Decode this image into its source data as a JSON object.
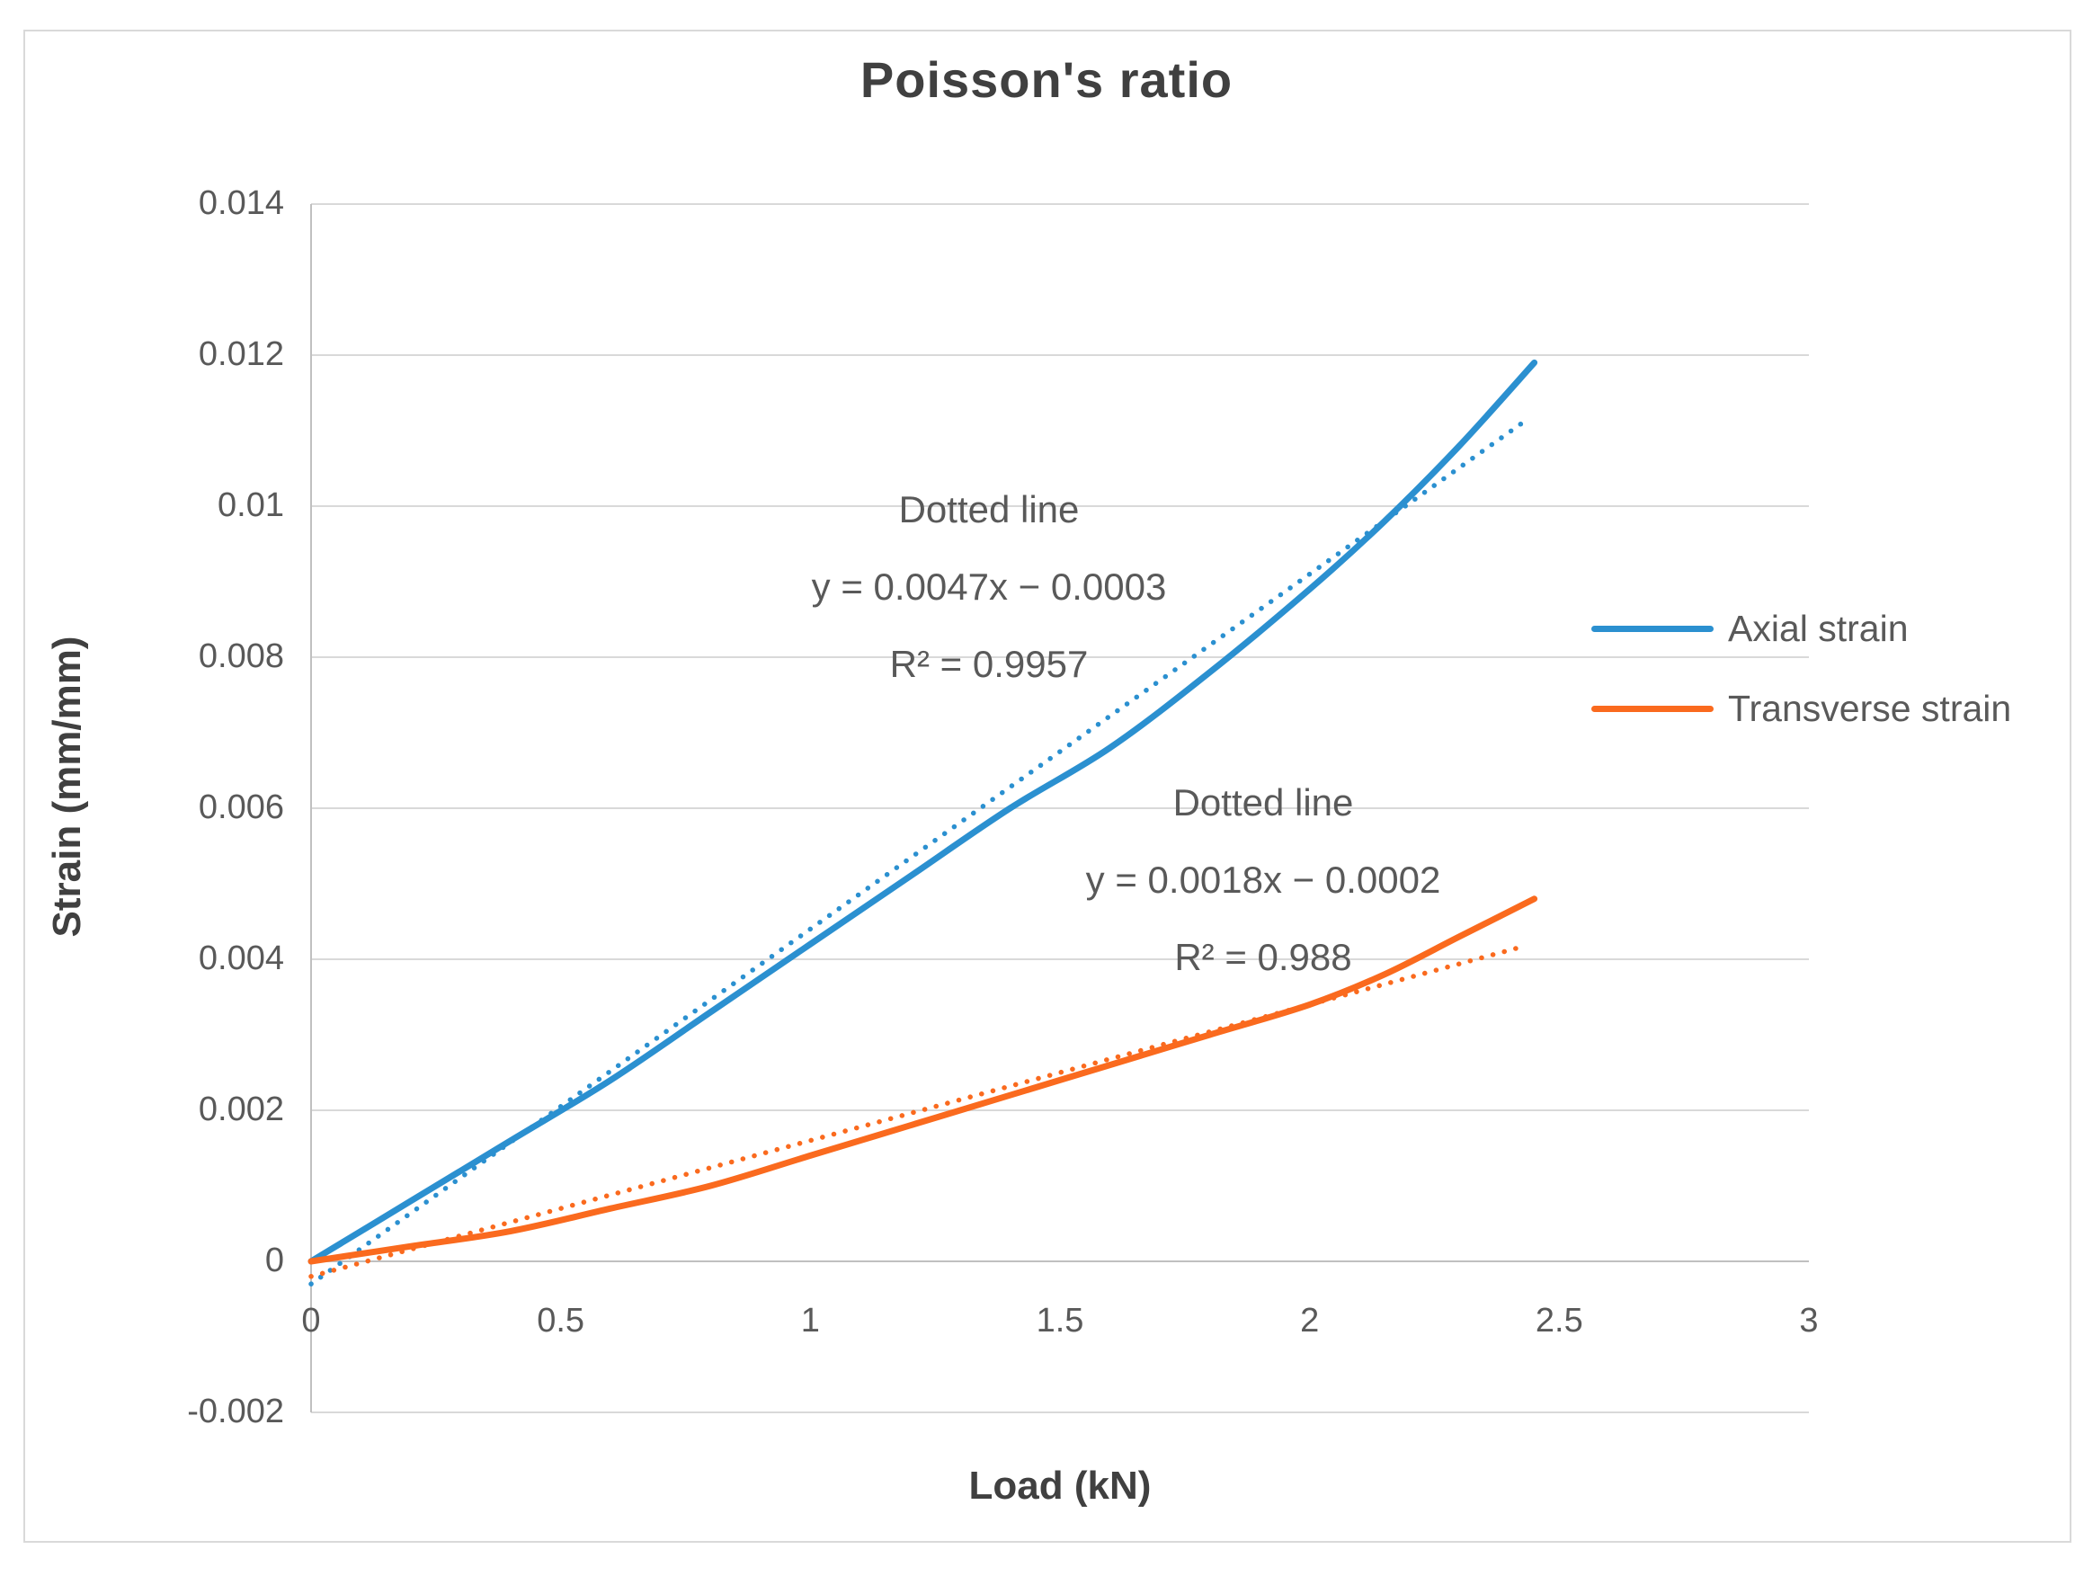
{
  "title": "Poisson's ratio",
  "axes": {
    "x": {
      "label": "Load (kN)",
      "min": 0,
      "max": 3,
      "ticks": [
        {
          "label": "0",
          "value": 0
        },
        {
          "label": "0.5",
          "value": 0.5
        },
        {
          "label": "1",
          "value": 1
        },
        {
          "label": "1.5",
          "value": 1.5
        },
        {
          "label": "2",
          "value": 2
        },
        {
          "label": "2.5",
          "value": 2.5
        },
        {
          "label": "3",
          "value": 3
        }
      ]
    },
    "y": {
      "label": "Strain (mm/mm)",
      "min": -0.002,
      "max": 0.014,
      "ticks": [
        {
          "label": "0.014",
          "value": 0.014
        },
        {
          "label": "0.012",
          "value": 0.012
        },
        {
          "label": "0.01",
          "value": 0.01
        },
        {
          "label": "0.008",
          "value": 0.008
        },
        {
          "label": "0.006",
          "value": 0.006
        },
        {
          "label": "0.004",
          "value": 0.004
        },
        {
          "label": "0.002",
          "value": 0.002
        },
        {
          "label": "0",
          "value": 0
        },
        {
          "label": "-0.002",
          "value": -0.002
        }
      ]
    }
  },
  "legend": [
    {
      "label": "Axial strain",
      "color": "#2b90d0"
    },
    {
      "label": "Transverse strain",
      "color": "#fa6a1e"
    }
  ],
  "annotations": [
    {
      "lines": [
        "Dotted line",
        "y = 0.0047x − 0.0003",
        "R² = 0.9957"
      ],
      "color": "#595959"
    },
    {
      "lines": [
        "Dotted line",
        "y = 0.0018x − 0.0002",
        "R² = 0.988"
      ],
      "color": "#595959"
    }
  ],
  "colors": {
    "axial": "#2b90d0",
    "transverse": "#fa6a1e",
    "gridline": "#d9d9d9",
    "axis_line": "#c0c0c0",
    "text": "#595959",
    "title_text": "#404040"
  },
  "chart_data": {
    "type": "line",
    "title": "Poisson's ratio",
    "xlabel": "Load (kN)",
    "ylabel": "Strain (mm/mm)",
    "xlim": [
      0,
      3
    ],
    "ylim": [
      -0.002,
      0.014
    ],
    "grid": "horizontal-major-only",
    "legend_position": "right",
    "series": [
      {
        "name": "Axial strain",
        "color": "#2b90d0",
        "style": "solid",
        "points": [
          [
            0,
            0
          ],
          [
            0.2,
            0.0008
          ],
          [
            0.4,
            0.0016
          ],
          [
            0.6,
            0.0024
          ],
          [
            0.8,
            0.0033
          ],
          [
            1.0,
            0.0042
          ],
          [
            1.2,
            0.0051
          ],
          [
            1.4,
            0.006
          ],
          [
            1.6,
            0.0068
          ],
          [
            1.8,
            0.0078
          ],
          [
            2.0,
            0.0089
          ],
          [
            2.15,
            0.0098
          ],
          [
            2.3,
            0.0108
          ],
          [
            2.45,
            0.0119
          ]
        ]
      },
      {
        "name": "Axial strain trendline",
        "color": "#2b90d0",
        "style": "dotted",
        "equation": "y = 0.0047x − 0.0003",
        "r_squared": 0.9957,
        "points": [
          [
            0,
            -0.0003
          ],
          [
            2.43,
            0.011121
          ]
        ]
      },
      {
        "name": "Transverse strain",
        "color": "#fa6a1e",
        "style": "solid",
        "points": [
          [
            0,
            0
          ],
          [
            0.2,
            0.0002
          ],
          [
            0.4,
            0.0004
          ],
          [
            0.6,
            0.0007
          ],
          [
            0.8,
            0.001
          ],
          [
            1.0,
            0.0014
          ],
          [
            1.2,
            0.0018
          ],
          [
            1.4,
            0.0022
          ],
          [
            1.6,
            0.0026
          ],
          [
            1.8,
            0.003
          ],
          [
            2.0,
            0.0034
          ],
          [
            2.15,
            0.0038
          ],
          [
            2.3,
            0.0043
          ],
          [
            2.45,
            0.0048
          ]
        ]
      },
      {
        "name": "Transverse strain trendline",
        "color": "#fa6a1e",
        "style": "dotted",
        "equation": "y = 0.0018x − 0.0002",
        "r_squared": 0.988,
        "points": [
          [
            0,
            -0.0002
          ],
          [
            2.43,
            0.004174
          ]
        ]
      }
    ]
  }
}
